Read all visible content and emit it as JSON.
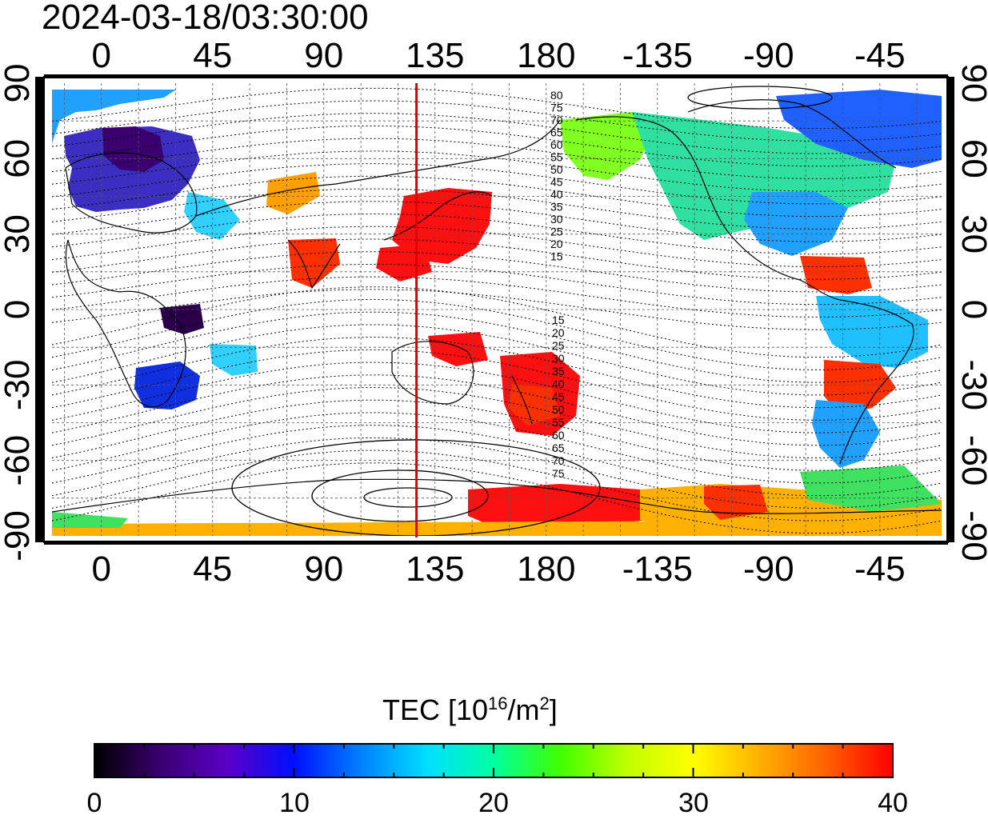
{
  "timestamp": "2024-03-18/03:30:00",
  "map": {
    "lon_ticks_top": [
      "0",
      "45",
      "90",
      "135",
      "180",
      "-135",
      "-90",
      "-45"
    ],
    "lon_ticks_bottom": [
      "0",
      "45",
      "90",
      "135",
      "180",
      "-135",
      "-90",
      "-45"
    ],
    "lat_ticks_left": [
      "90",
      "60",
      "30",
      "0",
      "-30",
      "-60",
      "-90"
    ],
    "lat_ticks_right": [
      "90",
      "60",
      "30",
      "0",
      "-30",
      "-60",
      "-90"
    ],
    "contour_labels_north": [
      "80",
      "75",
      "70",
      "65",
      "60",
      "55",
      "50",
      "45",
      "40",
      "35",
      "30",
      "25",
      "20",
      "15"
    ],
    "contour_labels_south": [
      "15",
      "20",
      "25",
      "30",
      "35",
      "40",
      "45",
      "50",
      "55",
      "60",
      "65",
      "70",
      "75"
    ],
    "marker_longitude": 127.5,
    "marker_color": "#e00000"
  },
  "colorbar": {
    "title": "TEC  [10",
    "title_exp": "16",
    "title_unit": "/m",
    "title_unit_exp": "2",
    "title_close": "]",
    "tick_labels": [
      "0",
      "10",
      "20",
      "30",
      "40"
    ],
    "range": [
      0,
      40
    ],
    "colors": [
      "#000000",
      "#3a0070",
      "#5a00c8",
      "#0010ff",
      "#0080ff",
      "#00e0ff",
      "#00ffa0",
      "#40ff00",
      "#c0ff00",
      "#ffff00",
      "#ffb000",
      "#ff6000",
      "#ff0000"
    ]
  }
}
